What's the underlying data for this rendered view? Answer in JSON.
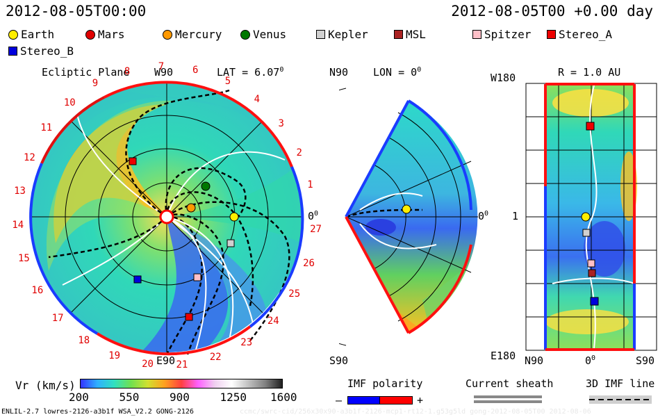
{
  "header": {
    "left_time": "2012-08-05T00:00",
    "right_time": "2012-08-05T00 +0.00 day"
  },
  "legend": [
    {
      "name": "Earth",
      "shape": "circle",
      "color": "#ffee00"
    },
    {
      "name": "Mars",
      "shape": "circle",
      "color": "#e00000"
    },
    {
      "name": "Mercury",
      "shape": "circle",
      "color": "#ff9900"
    },
    {
      "name": "Venus",
      "shape": "circle",
      "color": "#007700"
    },
    {
      "name": "Kepler",
      "shape": "square",
      "color": "#d0d0d0"
    },
    {
      "name": "MSL",
      "shape": "square",
      "color": "#aa2222"
    },
    {
      "name": "Spitzer",
      "shape": "square",
      "color": "#ffc0c8"
    },
    {
      "name": "Stereo_A",
      "shape": "square",
      "color": "#ee0000"
    },
    {
      "name": "Stereo_B",
      "shape": "square",
      "color": "#0000dd"
    }
  ],
  "panel1": {
    "title": "Ecliptic Plane",
    "top_label": "W90",
    "lat_label": "LAT = 6.07",
    "lat_sup": "0",
    "bottom_label": "E90",
    "right_label": "0",
    "right_sup": "0",
    "carrington": [
      "1",
      "2",
      "3",
      "4",
      "5",
      "6",
      "7",
      "8",
      "9",
      "10",
      "11",
      "12",
      "13",
      "14",
      "15",
      "16",
      "17",
      "18",
      "19",
      "20",
      "21",
      "22",
      "23",
      "24",
      "25",
      "26",
      "27"
    ]
  },
  "panel2": {
    "top_label": "N90",
    "lon_label": "LON = 0",
    "lon_sup": "0",
    "bottom_label": "S90",
    "right_label": "0",
    "right_sup": "0"
  },
  "panel3": {
    "title": "R = 1.0 AU",
    "top_left": "W180",
    "mid_left": "1",
    "bottom_left": "E180",
    "x_left": "N90",
    "x_mid": "0",
    "x_mid_sup": "0",
    "x_right": "S90"
  },
  "colorbar": {
    "label": "Vr (km/s)",
    "ticks": [
      "200",
      "550",
      "900",
      "1250",
      "1600"
    ]
  },
  "imf": {
    "title": "IMF polarity",
    "minus": "–",
    "plus": "+",
    "neg_color": "#0000ff",
    "pos_color": "#ff0000"
  },
  "current_sheath": {
    "title": "Current sheath"
  },
  "imf_line": {
    "title": "3D IMF line"
  },
  "footer": {
    "left": "ENLIL-2.7 lowres-2126-a3b1f WSA_V2.2 GONG-2126",
    "right": "ccmc/swrc-cid/256x30x90-a3b1f-2126-mcp1-rt12-1.g53g5ld gong-2012-08-05T00 2012-08-06"
  }
}
